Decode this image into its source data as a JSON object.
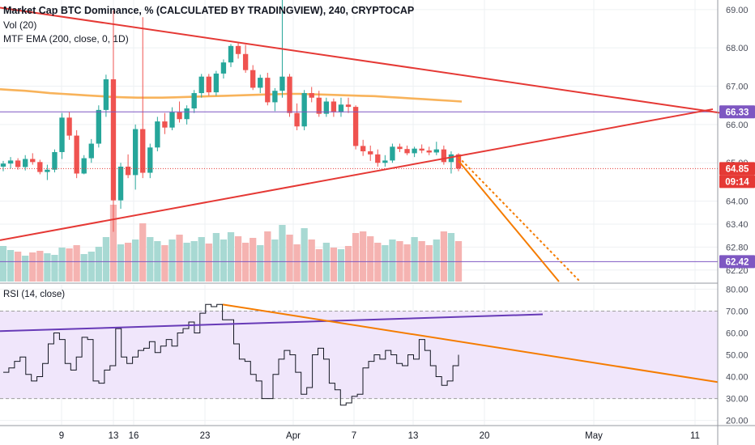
{
  "chart_data": [
    {
      "type": "candlestick",
      "title": "Market Cap BTC Dominance, % (CALCULATED BY TRADINGVIEW), 240, CRYPTOCAP",
      "ylim": [
        61.9,
        69.25
      ],
      "yticks": [
        "69.00",
        "68.00",
        "67.00",
        "66.00",
        "65.00",
        "64.00",
        "63.40",
        "62.80",
        "62.20"
      ],
      "xticks": [
        "9",
        "13",
        "16",
        "23",
        "Apr",
        "7",
        "13",
        "20",
        "May",
        "11"
      ],
      "last_price_label": "64.85",
      "countdown_label": "09:14",
      "level_labels": [
        "66.33",
        "62.42"
      ],
      "indicators": [
        "Vol (20)",
        "MTF EMA (200, close, 0, 1D)"
      ],
      "colors": {
        "up": "#26a69a",
        "down": "#ef5350",
        "ema": "#f8b35b",
        "trendline": "#e53935",
        "projection": "#f57c00",
        "level": "#7e57c2"
      },
      "series": [
        {
          "values": [
            [
              64.9,
              65.05,
              64.78,
              64.98
            ],
            [
              64.98,
              65.15,
              64.85,
              65.06
            ],
            [
              65.06,
              65.12,
              64.82,
              64.89
            ],
            [
              64.89,
              65.2,
              64.8,
              65.1
            ],
            [
              65.1,
              65.25,
              64.95,
              65.02
            ],
            [
              65.02,
              65.08,
              64.7,
              64.76
            ],
            [
              64.76,
              64.95,
              64.55,
              64.82
            ],
            [
              64.82,
              65.35,
              64.75,
              65.28
            ],
            [
              65.28,
              66.3,
              65.1,
              66.18
            ],
            [
              66.18,
              66.32,
              65.6,
              65.71
            ],
            [
              65.71,
              65.85,
              64.6,
              64.72
            ],
            [
              64.72,
              65.2,
              64.7,
              65.12
            ],
            [
              65.12,
              65.62,
              65.0,
              65.5
            ],
            [
              65.5,
              66.5,
              65.4,
              66.38
            ],
            [
              66.38,
              67.3,
              66.2,
              67.18
            ],
            [
              67.18,
              68.98,
              63.2,
              64.02
            ],
            [
              64.02,
              65.0,
              63.8,
              64.9
            ],
            [
              64.9,
              65.22,
              64.6,
              64.68
            ],
            [
              64.68,
              66.0,
              64.3,
              65.88
            ],
            [
              65.88,
              68.8,
              64.6,
              64.74
            ],
            [
              64.74,
              65.5,
              64.6,
              65.4
            ],
            [
              65.4,
              66.2,
              65.3,
              66.08
            ],
            [
              66.08,
              66.3,
              65.75,
              65.92
            ],
            [
              65.92,
              66.45,
              65.85,
              66.32
            ],
            [
              66.32,
              66.6,
              66.05,
              66.14
            ],
            [
              66.14,
              66.5,
              66.0,
              66.42
            ],
            [
              66.42,
              66.9,
              66.3,
              66.82
            ],
            [
              66.82,
              67.32,
              66.7,
              67.25
            ],
            [
              67.25,
              67.32,
              66.75,
              66.84
            ],
            [
              66.84,
              67.4,
              66.75,
              67.33
            ],
            [
              67.33,
              67.7,
              67.2,
              67.62
            ],
            [
              67.62,
              68.1,
              67.5,
              68.05
            ],
            [
              68.05,
              68.12,
              67.72,
              67.84
            ],
            [
              67.84,
              68.08,
              67.35,
              67.42
            ],
            [
              67.42,
              67.55,
              66.9,
              66.96
            ],
            [
              66.96,
              67.3,
              66.82,
              67.22
            ],
            [
              67.22,
              67.35,
              66.5,
              66.58
            ],
            [
              66.58,
              66.95,
              66.35,
              66.88
            ],
            [
              66.88,
              69.25,
              66.7,
              67.25
            ],
            [
              67.25,
              67.32,
              66.2,
              66.3
            ],
            [
              66.3,
              66.55,
              65.85,
              65.95
            ],
            [
              65.95,
              66.9,
              65.85,
              66.82
            ],
            [
              66.82,
              66.98,
              66.58,
              66.7
            ],
            [
              66.7,
              66.88,
              66.2,
              66.28
            ],
            [
              66.28,
              66.7,
              66.2,
              66.6
            ],
            [
              66.6,
              66.68,
              66.2,
              66.32
            ],
            [
              66.32,
              66.7,
              66.2,
              66.52
            ],
            [
              66.52,
              66.7,
              66.3,
              66.46
            ],
            [
              66.46,
              66.5,
              65.35,
              65.44
            ],
            [
              65.44,
              65.6,
              65.18,
              65.3
            ],
            [
              65.3,
              65.45,
              65.05,
              65.22
            ],
            [
              65.22,
              65.35,
              64.9,
              65.0
            ],
            [
              65.0,
              65.2,
              64.9,
              65.06
            ],
            [
              65.06,
              65.5,
              65.0,
              65.42
            ],
            [
              65.42,
              65.5,
              65.28,
              65.36
            ],
            [
              65.36,
              65.45,
              65.2,
              65.25
            ],
            [
              65.25,
              65.42,
              65.15,
              65.37
            ],
            [
              65.37,
              65.48,
              65.25,
              65.32
            ],
            [
              65.32,
              65.42,
              65.2,
              65.27
            ],
            [
              65.27,
              65.55,
              65.2,
              65.35
            ],
            [
              65.35,
              65.45,
              64.95,
              65.02
            ],
            [
              65.02,
              65.3,
              64.72,
              65.22
            ],
            [
              65.22,
              65.25,
              64.78,
              64.85
            ]
          ]
        },
        {
          "values": [
            0.44,
            0.39,
            0.37,
            0.32,
            0.36,
            0.38,
            0.35,
            0.33,
            0.42,
            0.41,
            0.45,
            0.34,
            0.37,
            0.43,
            0.55,
            0.95,
            0.46,
            0.48,
            0.52,
            0.72,
            0.55,
            0.5,
            0.45,
            0.52,
            0.58,
            0.48,
            0.5,
            0.55,
            0.47,
            0.6,
            0.52,
            0.61,
            0.56,
            0.48,
            0.54,
            0.45,
            0.62,
            0.52,
            0.7,
            0.58,
            0.46,
            0.66,
            0.52,
            0.4,
            0.48,
            0.42,
            0.4,
            0.44,
            0.6,
            0.62,
            0.56,
            0.48,
            0.45,
            0.52,
            0.5,
            0.46,
            0.55,
            0.5,
            0.45,
            0.52,
            0.62,
            0.6,
            0.5
          ]
        },
        {
          "values": [
            66.92,
            66.9,
            66.88,
            66.85,
            66.82,
            66.8,
            66.78,
            66.76,
            66.74,
            66.72,
            66.71,
            66.7,
            66.7,
            66.7,
            66.71,
            66.72,
            66.73,
            66.74,
            66.75,
            66.76,
            66.77,
            66.78,
            66.79,
            66.8,
            66.8,
            66.79,
            66.78,
            66.77,
            66.76,
            66.75,
            66.74,
            66.72,
            66.7,
            66.68,
            66.66,
            66.64,
            66.62,
            66.6
          ]
        },
        {
          "values": [
            42,
            44,
            47,
            49,
            41,
            38,
            40,
            46,
            55,
            60,
            57,
            46,
            43,
            49,
            58,
            57,
            38,
            37,
            43,
            45,
            62,
            49,
            46,
            49,
            52,
            53,
            56,
            51,
            54,
            57,
            54,
            60,
            62,
            65,
            60,
            69,
            73,
            72,
            73,
            66,
            66,
            55,
            48,
            47,
            41,
            38,
            30,
            30,
            41,
            48,
            52,
            50,
            42,
            32,
            35,
            50,
            53,
            48,
            37,
            34,
            27,
            28,
            31,
            32,
            44,
            47,
            50,
            48,
            52,
            50,
            46,
            45,
            50,
            48,
            57,
            52,
            45,
            40,
            36,
            38,
            45,
            50
          ]
        }
      ]
    },
    {
      "type": "line",
      "title": "RSI (14, close)",
      "ylim": [
        18,
        82
      ],
      "yticks": [
        "80.00",
        "70.00",
        "60.00",
        "50.00",
        "40.00",
        "30.00",
        "20.00"
      ],
      "band": [
        30,
        70
      ]
    }
  ]
}
